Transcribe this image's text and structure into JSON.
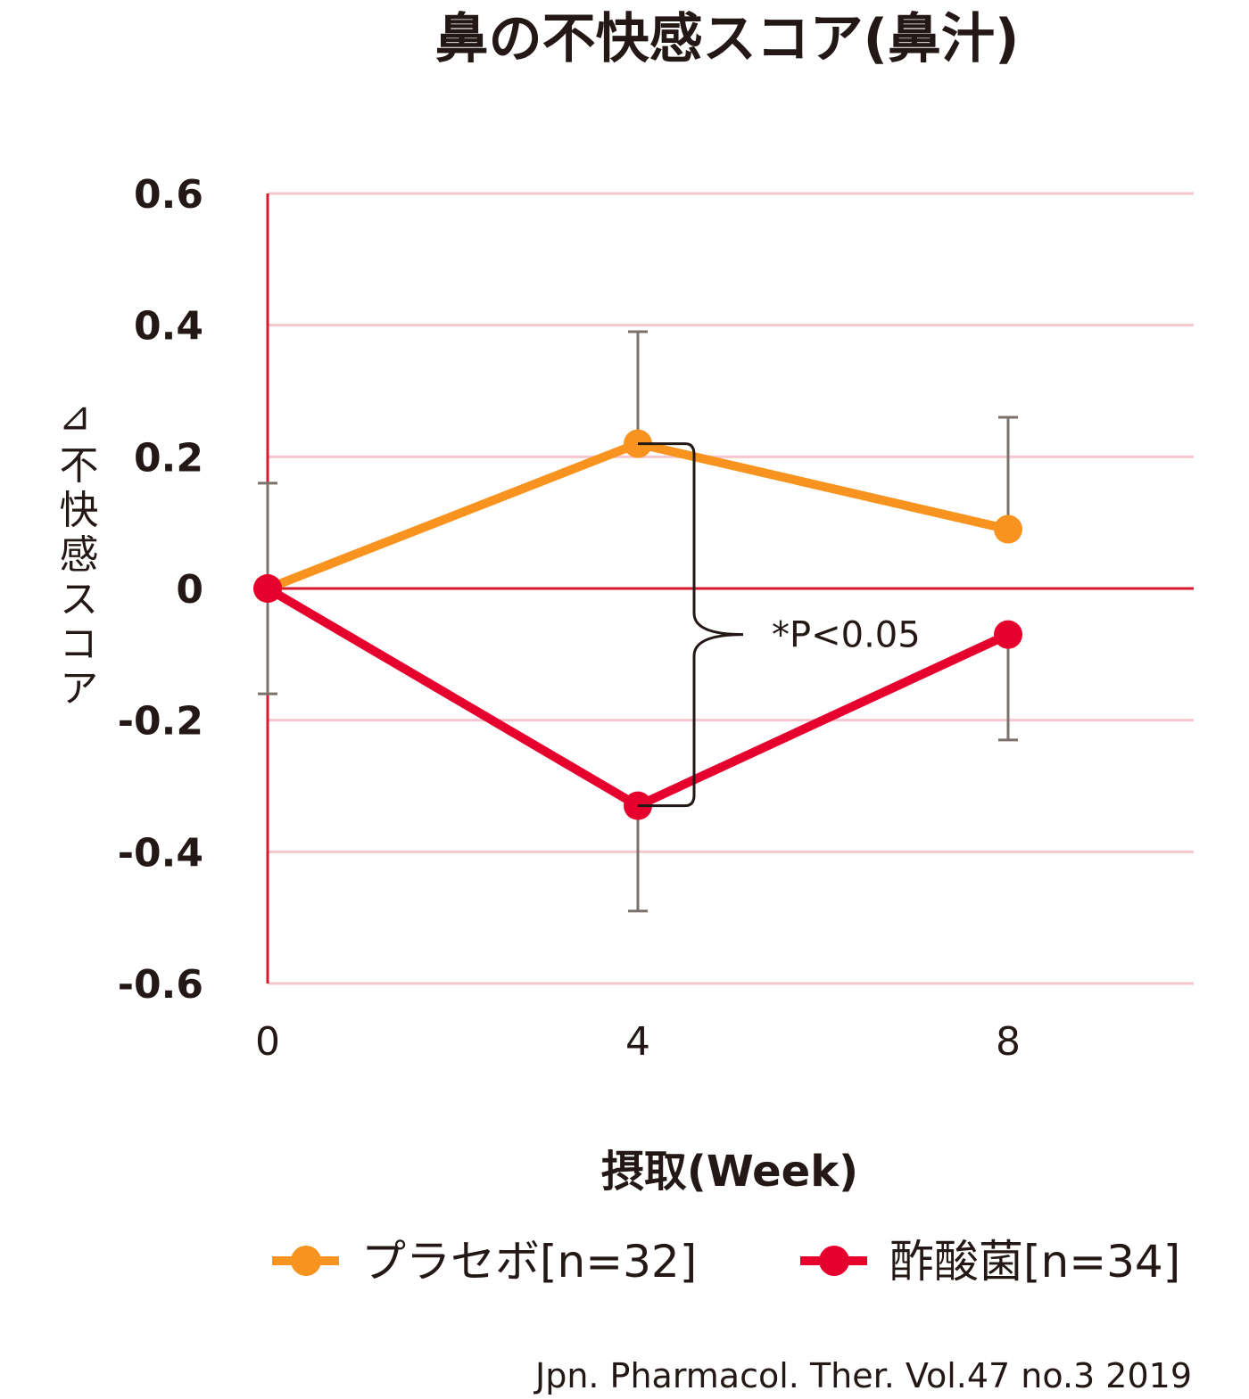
{
  "chart_data": {
    "type": "line",
    "title": "鼻の不快感スコア(鼻汁)",
    "xlabel": "摂取(Week)",
    "ylabel": "⊿不快感スコア",
    "x": [
      0,
      4,
      8
    ],
    "x_ticks": [
      "0",
      "4",
      "8"
    ],
    "xlim": [
      0,
      10
    ],
    "ylim": [
      -0.6,
      0.6
    ],
    "y_ticks": [
      0.6,
      0.4,
      0.2,
      0,
      -0.2,
      -0.4,
      -0.6
    ],
    "y_tick_labels": [
      "0.6",
      "0.4",
      "0.2",
      "0",
      "-0.2",
      "-0.4",
      "-0.6"
    ],
    "grid": true,
    "series": [
      {
        "name": "プラセボ[n=32]",
        "color": "#f7931e",
        "values": [
          0,
          0.22,
          0.09
        ],
        "error": [
          0.16,
          0.17,
          0.17
        ]
      },
      {
        "name": "酢酸菌[n=34]",
        "color": "#e5002d",
        "values": [
          0,
          -0.33,
          -0.07
        ],
        "error": [
          0.16,
          0.16,
          0.16
        ]
      }
    ],
    "annotations": [
      {
        "text": "*P<0.05",
        "x": 4,
        "between": [
          0.22,
          -0.33
        ]
      }
    ],
    "legend_position": "bottom",
    "source": "Jpn. Pharmacol. Ther. Vol.47 no.3 2019"
  },
  "colors": {
    "axis": "#d7192d",
    "grid": "#f5c6cd",
    "error_bar": "#7a706c",
    "text": "#231815"
  }
}
